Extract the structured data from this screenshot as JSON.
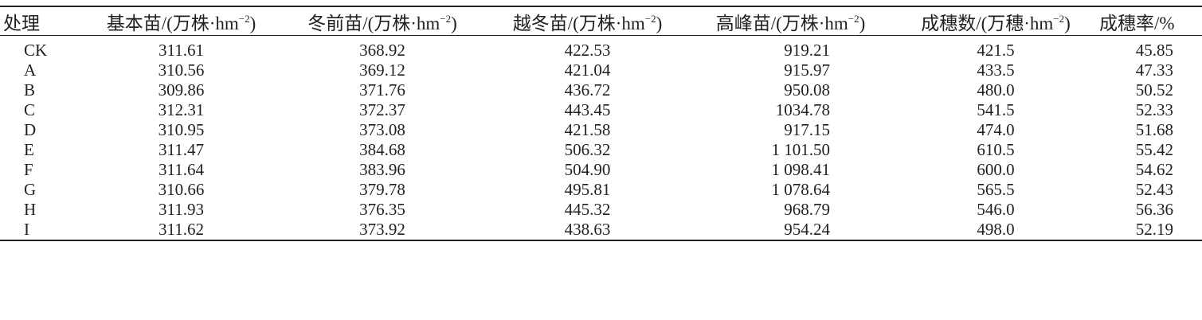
{
  "table": {
    "headers": [
      {
        "main": "处理",
        "sup": "",
        "tail": ""
      },
      {
        "main": "基本苗/(万株·hm",
        "sup": "−2",
        "tail": ")"
      },
      {
        "main": "冬前苗/(万株·hm",
        "sup": "−2",
        "tail": ")"
      },
      {
        "main": "越冬苗/(万株·hm",
        "sup": "−2",
        "tail": ")"
      },
      {
        "main": "高峰苗/(万株·hm",
        "sup": "−2",
        "tail": ")"
      },
      {
        "main": "成穗数/(万穗·hm",
        "sup": "−2",
        "tail": ")"
      },
      {
        "main": "成穗率/%",
        "sup": "",
        "tail": ""
      }
    ],
    "rows": [
      [
        "CK",
        "311.61",
        "368.92",
        "422.53",
        "919.21",
        "421.5",
        "45.85"
      ],
      [
        "A",
        "310.56",
        "369.12",
        "421.04",
        "915.97",
        "433.5",
        "47.33"
      ],
      [
        "B",
        "309.86",
        "371.76",
        "436.72",
        "950.08",
        "480.0",
        "50.52"
      ],
      [
        "C",
        "312.31",
        "372.37",
        "443.45",
        "1034.78",
        "541.5",
        "52.33"
      ],
      [
        "D",
        "310.95",
        "373.08",
        "421.58",
        "917.15",
        "474.0",
        "51.68"
      ],
      [
        "E",
        "311.47",
        "384.68",
        "506.32",
        "1 101.50",
        "610.5",
        "55.42"
      ],
      [
        "F",
        "311.64",
        "383.96",
        "504.90",
        "1 098.41",
        "600.0",
        "54.62"
      ],
      [
        "G",
        "310.66",
        "379.78",
        "495.81",
        "1 078.64",
        "565.5",
        "52.43"
      ],
      [
        "H",
        "311.93",
        "376.35",
        "445.32",
        "968.79",
        "546.0",
        "56.36"
      ],
      [
        "I",
        "311.62",
        "373.92",
        "438.63",
        "954.24",
        "498.0",
        "52.19"
      ]
    ]
  }
}
